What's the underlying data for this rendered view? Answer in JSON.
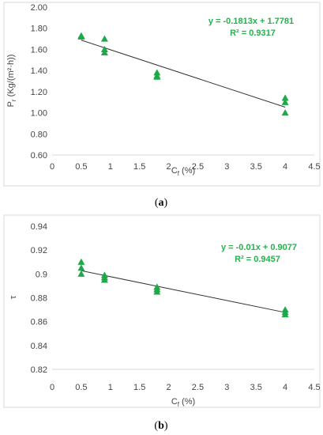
{
  "chart_data": [
    {
      "type": "scatter",
      "panel_label": {
        "open": "(",
        "letter": "a",
        "close": ")"
      },
      "ylabel": {
        "main": "P",
        "sub": "r",
        "rest": " (Kg/(m²·h))"
      },
      "xlabel": {
        "main": "C",
        "sub": "f",
        "rest": " (%)"
      },
      "xlim": [
        0,
        4.5
      ],
      "ylim": [
        0.6,
        2.0
      ],
      "xticks": [
        "0",
        "0.5",
        "1",
        "1.5",
        "2",
        "2.5",
        "3",
        "3.5",
        "4",
        "4.5"
      ],
      "yticks": [
        "0.60",
        "0.80",
        "1.00",
        "1.20",
        "1.40",
        "1.60",
        "1.80",
        "2.00"
      ],
      "grid": false,
      "marker_color": "#1fa84a",
      "series": [
        {
          "points": [
            {
              "x": 0.5,
              "y": 1.73
            },
            {
              "x": 0.5,
              "y": 1.72
            },
            {
              "x": 0.9,
              "y": 1.7
            },
            {
              "x": 0.9,
              "y": 1.6
            },
            {
              "x": 0.9,
              "y": 1.57
            },
            {
              "x": 1.8,
              "y": 1.38
            },
            {
              "x": 1.8,
              "y": 1.35
            },
            {
              "x": 1.8,
              "y": 1.34
            },
            {
              "x": 4.0,
              "y": 1.14
            },
            {
              "x": 4.0,
              "y": 1.1
            },
            {
              "x": 4.0,
              "y": 1.0
            }
          ]
        }
      ],
      "trendline": {
        "slope": -0.1813,
        "intercept": 1.7781,
        "x_range": [
          0.5,
          4.0
        ],
        "color": "#333333"
      },
      "equation_text": "y = -0.1813x + 1.7781",
      "r2_text": "R² = 0.9317"
    },
    {
      "type": "scatter",
      "panel_label": {
        "open": "(",
        "letter": "b",
        "close": ")"
      },
      "ylabel": {
        "main": "τ",
        "sub": "",
        "rest": ""
      },
      "xlabel": {
        "main": "C",
        "sub": "f",
        "rest": " (%)"
      },
      "xlim": [
        0,
        4.5
      ],
      "ylim": [
        0.82,
        0.94
      ],
      "xticks": [
        "0",
        "0.5",
        "1",
        "1.5",
        "2",
        "2.5",
        "3",
        "3.5",
        "4",
        "4.5"
      ],
      "yticks": [
        "0.82",
        "0.84",
        "0.86",
        "0.88",
        "0.9",
        "0.92",
        "0.94"
      ],
      "grid": false,
      "marker_color": "#1fa84a",
      "series": [
        {
          "points": [
            {
              "x": 0.5,
              "y": 0.91
            },
            {
              "x": 0.5,
              "y": 0.905
            },
            {
              "x": 0.5,
              "y": 0.9
            },
            {
              "x": 0.9,
              "y": 0.899
            },
            {
              "x": 0.9,
              "y": 0.897
            },
            {
              "x": 0.9,
              "y": 0.895
            },
            {
              "x": 1.8,
              "y": 0.889
            },
            {
              "x": 1.8,
              "y": 0.887
            },
            {
              "x": 1.8,
              "y": 0.885
            },
            {
              "x": 4.0,
              "y": 0.87
            },
            {
              "x": 4.0,
              "y": 0.868
            },
            {
              "x": 4.0,
              "y": 0.866
            }
          ]
        }
      ],
      "trendline": {
        "slope": -0.01,
        "intercept": 0.9077,
        "x_range": [
          0.5,
          4.0
        ],
        "color": "#333333"
      },
      "equation_text": "y = -0.01x + 0.9077",
      "r2_text": "R² = 0.9457"
    }
  ]
}
